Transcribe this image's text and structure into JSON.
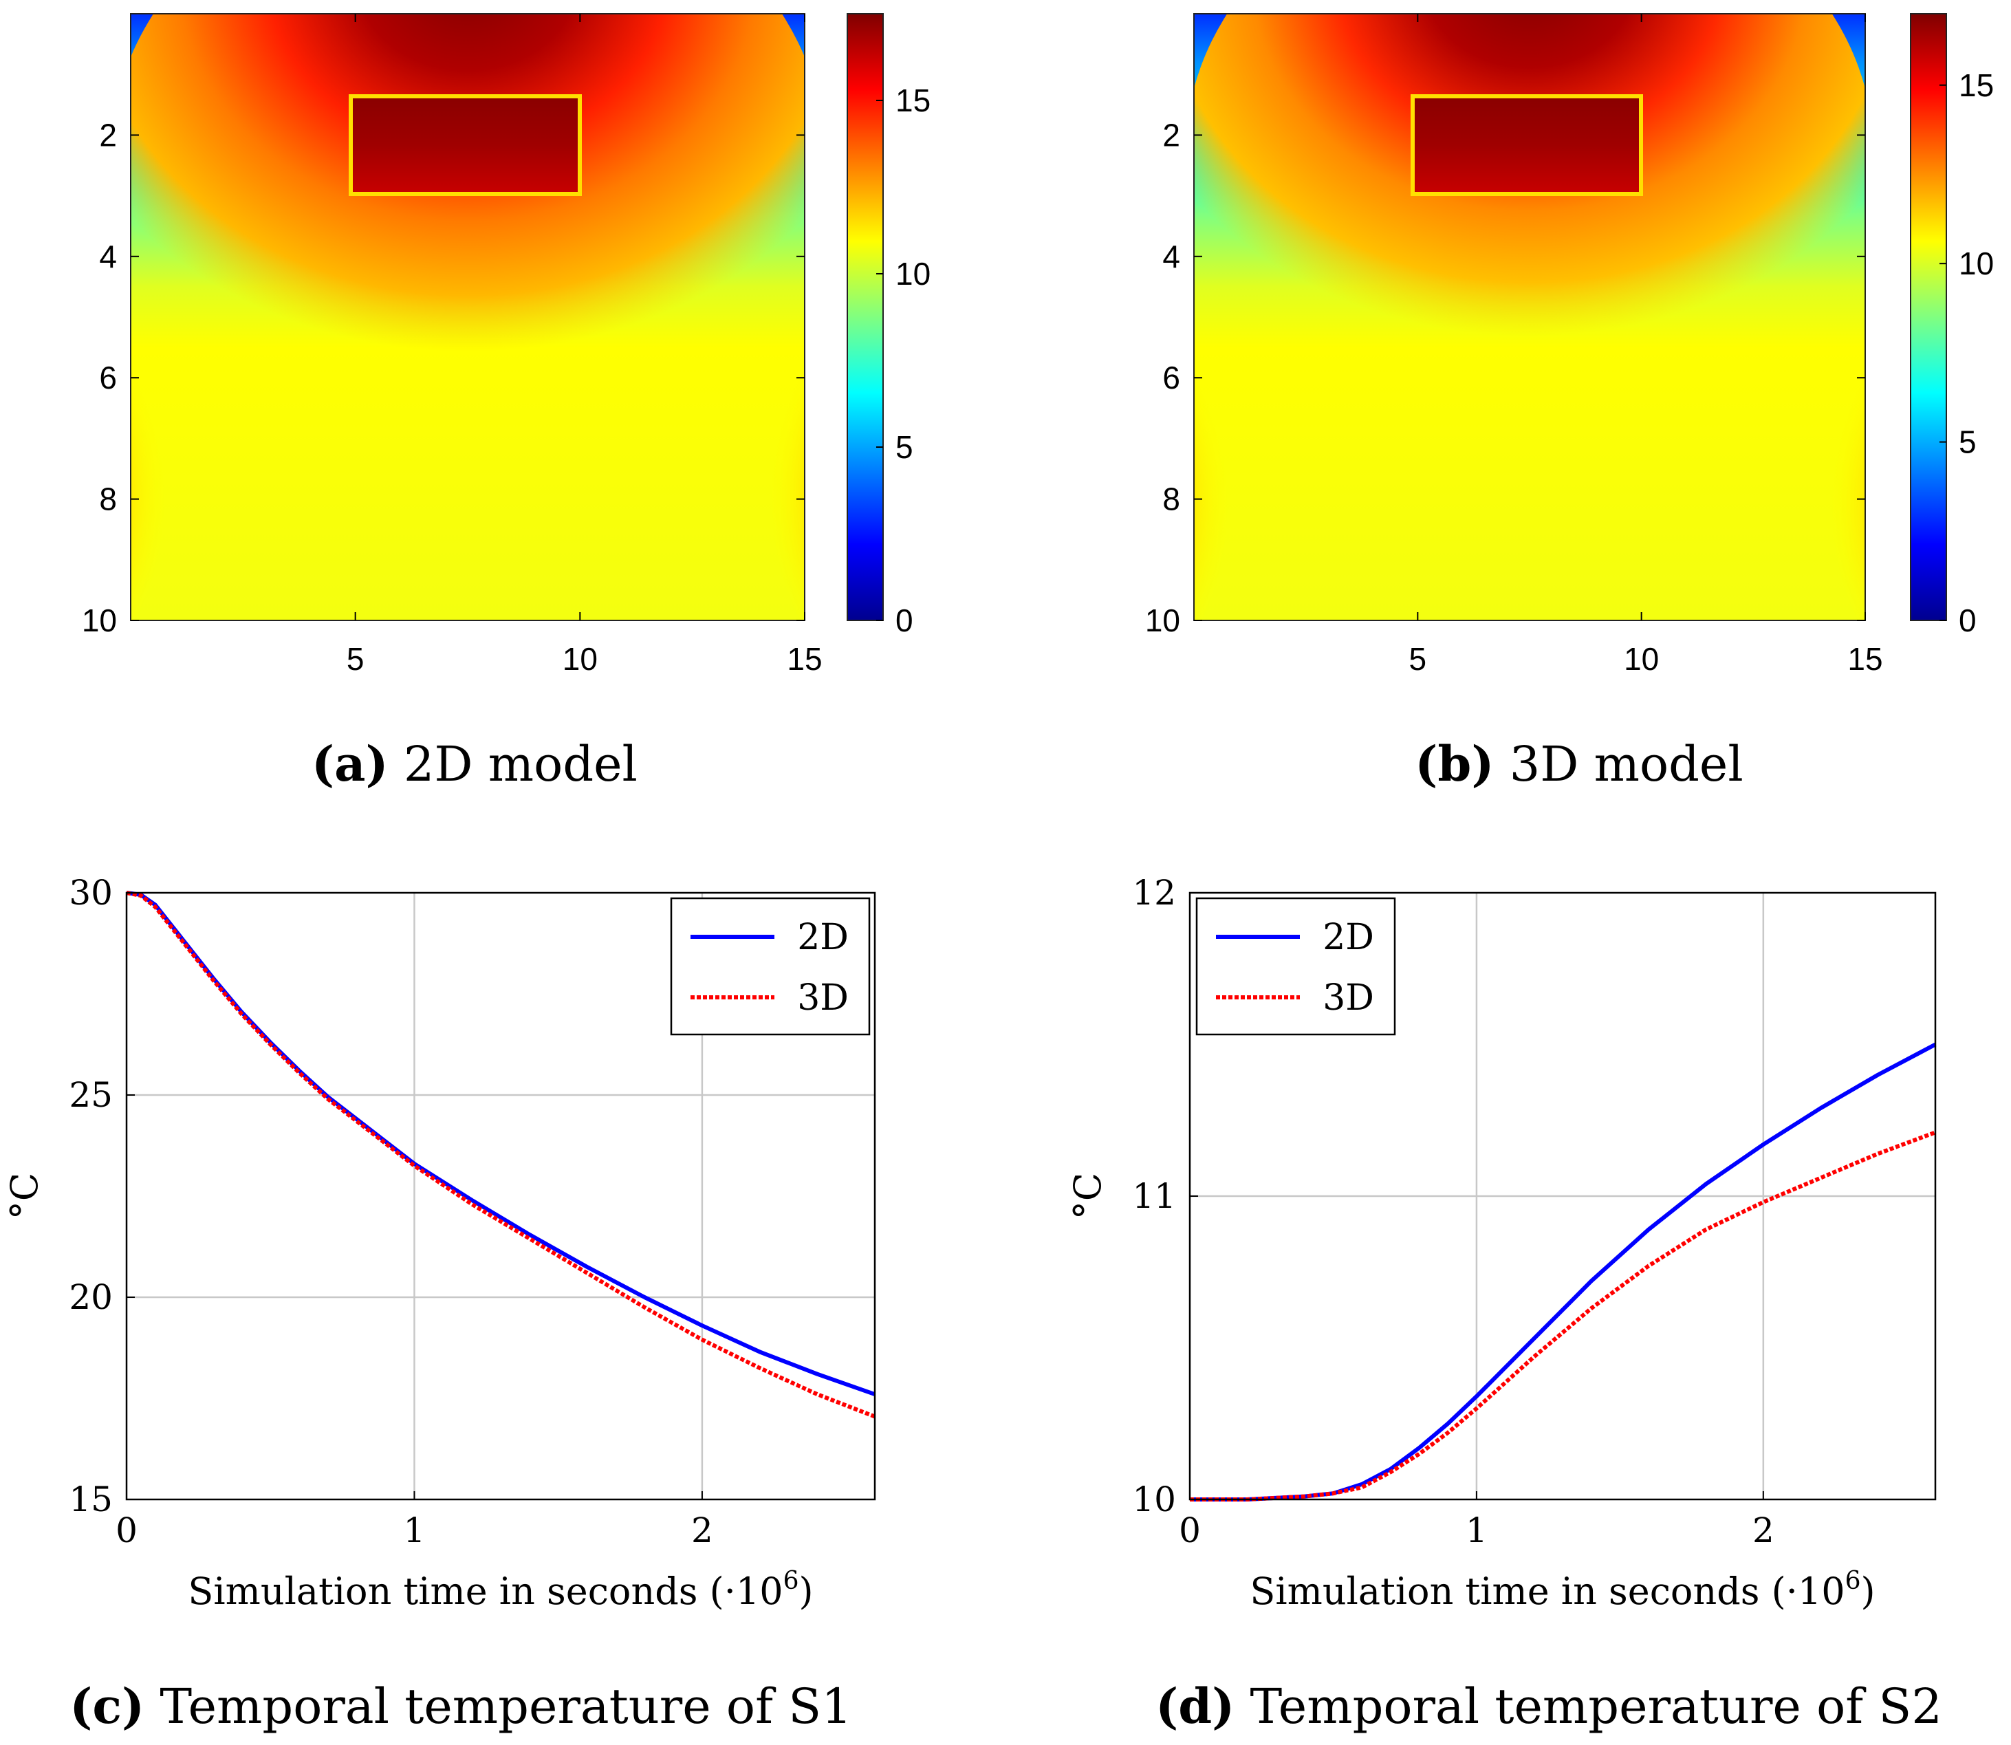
{
  "colors": {
    "series_2d": "#0000ff",
    "series_3d": "#ff0000",
    "grid": "#c8c8c8",
    "axis": "#000000",
    "jet": [
      "#00008f",
      "#0000ff",
      "#0080ff",
      "#00ffff",
      "#80ff80",
      "#ffff00",
      "#ff8000",
      "#ff0000",
      "#800000"
    ]
  },
  "chart_data": [
    {
      "id": "a",
      "type": "heatmap",
      "caption_letter": "a",
      "caption_text": "2D model",
      "x_ticks": [
        "5",
        "10",
        "15"
      ],
      "x_tick_values": [
        5,
        10,
        15
      ],
      "y_ticks": [
        "2",
        "4",
        "6",
        "8",
        "10"
      ],
      "y_tick_values": [
        2,
        4,
        6,
        8,
        10
      ],
      "xlim": [
        0,
        15
      ],
      "ylim": [
        0,
        10
      ],
      "colorbar_ticks": [
        "0",
        "5",
        "10",
        "15"
      ],
      "colorbar_tick_values": [
        0,
        5,
        10,
        15
      ],
      "colorbar_range": [
        0,
        17.5
      ],
      "hot_region": {
        "x": [
          5,
          10
        ],
        "y": [
          1.35,
          3.0
        ]
      }
    },
    {
      "id": "b",
      "type": "heatmap",
      "caption_letter": "b",
      "caption_text": "3D model",
      "x_ticks": [
        "5",
        "10",
        "15"
      ],
      "x_tick_values": [
        5,
        10,
        15
      ],
      "y_ticks": [
        "2",
        "4",
        "6",
        "8",
        "10"
      ],
      "y_tick_values": [
        2,
        4,
        6,
        8,
        10
      ],
      "xlim": [
        0,
        15
      ],
      "ylim": [
        0,
        10
      ],
      "colorbar_ticks": [
        "0",
        "5",
        "10",
        "15"
      ],
      "colorbar_tick_values": [
        0,
        5,
        10,
        15
      ],
      "colorbar_range": [
        0,
        17
      ],
      "hot_region": {
        "x": [
          5,
          10
        ],
        "y": [
          1.35,
          3.0
        ]
      }
    },
    {
      "id": "c",
      "type": "line",
      "caption_letter": "c",
      "caption_text": "Temporal temperature of S1",
      "xlabel": "Simulation time in seconds (·10",
      "xlabel_exp": "6",
      "xlabel_close": ")",
      "ylabel": "°C",
      "xlim": [
        0,
        2.6
      ],
      "ylim": [
        15,
        30
      ],
      "x_ticks": [
        "0",
        "1",
        "2"
      ],
      "x_tick_values": [
        0,
        1,
        2
      ],
      "y_ticks": [
        "15",
        "20",
        "25",
        "30"
      ],
      "y_tick_values": [
        15,
        20,
        25,
        30
      ],
      "legend_position": "top-right",
      "series": [
        {
          "name": "2D",
          "style": "solid",
          "x": [
            0,
            0.05,
            0.1,
            0.2,
            0.3,
            0.4,
            0.5,
            0.6,
            0.7,
            0.8,
            1.0,
            1.2,
            1.4,
            1.6,
            1.8,
            2.0,
            2.2,
            2.4,
            2.6
          ],
          "y": [
            30,
            29.95,
            29.7,
            28.8,
            27.9,
            27.05,
            26.3,
            25.6,
            24.95,
            24.4,
            23.3,
            22.4,
            21.55,
            20.75,
            20.0,
            19.3,
            18.65,
            18.1,
            17.6
          ]
        },
        {
          "name": "3D",
          "style": "dotted",
          "x": [
            0,
            0.05,
            0.1,
            0.2,
            0.3,
            0.4,
            0.5,
            0.6,
            0.7,
            0.8,
            1.0,
            1.2,
            1.4,
            1.6,
            1.8,
            2.0,
            2.2,
            2.4,
            2.6
          ],
          "y": [
            30,
            29.93,
            29.65,
            28.75,
            27.85,
            27.0,
            26.25,
            25.55,
            24.9,
            24.35,
            23.25,
            22.3,
            21.45,
            20.6,
            19.75,
            18.95,
            18.25,
            17.6,
            17.05
          ]
        }
      ]
    },
    {
      "id": "d",
      "type": "line",
      "caption_letter": "d",
      "caption_text": "Temporal temperature of S2",
      "xlabel": "Simulation time in seconds (·10",
      "xlabel_exp": "6",
      "xlabel_close": ")",
      "ylabel": "°C",
      "xlim": [
        0,
        2.6
      ],
      "ylim": [
        10,
        12
      ],
      "x_ticks": [
        "0",
        "1",
        "2"
      ],
      "x_tick_values": [
        0,
        1,
        2
      ],
      "y_ticks": [
        "10",
        "11",
        "12"
      ],
      "y_tick_values": [
        10,
        11,
        12
      ],
      "legend_position": "top-left",
      "series": [
        {
          "name": "2D",
          "style": "solid",
          "x": [
            0,
            0.2,
            0.4,
            0.5,
            0.6,
            0.7,
            0.8,
            0.9,
            1.0,
            1.2,
            1.4,
            1.6,
            1.8,
            2.0,
            2.2,
            2.4,
            2.6
          ],
          "y": [
            10,
            10.0,
            10.01,
            10.02,
            10.05,
            10.1,
            10.17,
            10.25,
            10.34,
            10.53,
            10.72,
            10.89,
            11.04,
            11.17,
            11.29,
            11.4,
            11.5
          ]
        },
        {
          "name": "3D",
          "style": "dotted",
          "x": [
            0,
            0.2,
            0.4,
            0.5,
            0.6,
            0.7,
            0.8,
            0.9,
            1.0,
            1.2,
            1.4,
            1.6,
            1.8,
            2.0,
            2.2,
            2.4,
            2.6
          ],
          "y": [
            10,
            10.0,
            10.01,
            10.02,
            10.04,
            10.09,
            10.15,
            10.22,
            10.3,
            10.47,
            10.63,
            10.77,
            10.89,
            10.98,
            11.06,
            11.14,
            11.21
          ]
        }
      ]
    }
  ]
}
